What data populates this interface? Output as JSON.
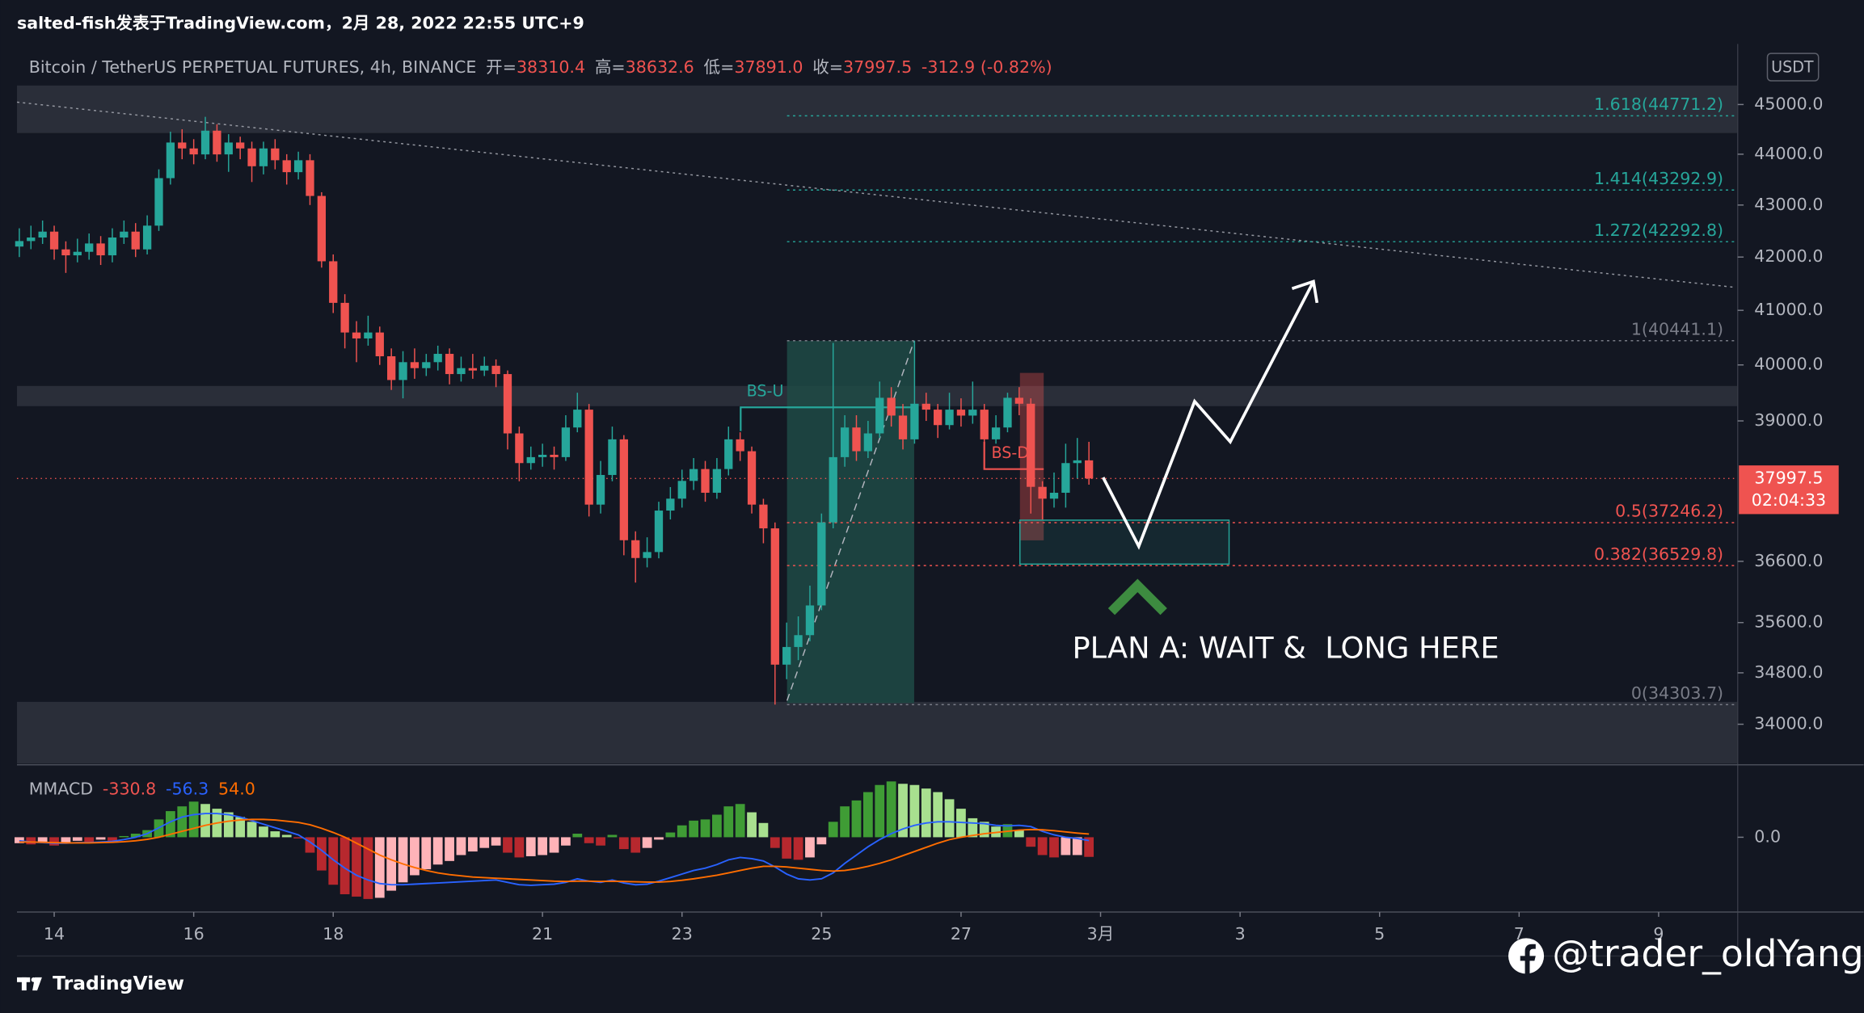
{
  "header": {
    "attribution": "salted-fish发表于TradingView.com，2月 28, 2022 22:55 UTC+9",
    "symbol": "Bitcoin / TetherUS PERPETUAL FUTURES, 4h, BINANCE",
    "ohlc": [
      {
        "label": "开=",
        "value": "38310.4"
      },
      {
        "label": "高=",
        "value": "38632.6"
      },
      {
        "label": "低=",
        "value": "37891.0"
      },
      {
        "label": "收=",
        "value": "37997.5"
      }
    ],
    "change": "-312.9 (-0.82%)",
    "currency": "USDT",
    "countdown": "02:04:33"
  },
  "annotations": {
    "bs_up": "BS-U",
    "bs_down": "BS-D",
    "plan": "PLAN A: WAIT &  LONG HERE"
  },
  "footer": {
    "brand": "TradingView",
    "watermark": "@trader_oldYang"
  },
  "chart_data": [
    {
      "type": "candlestick",
      "log_scale": true,
      "up_color": "#26a69a",
      "down_color": "#ef5350",
      "xlim": [
        -0.2,
        147.8
      ],
      "ylim": [
        33400,
        46250
      ],
      "xticks": [
        {
          "value": 3,
          "label": "14"
        },
        {
          "value": 15,
          "label": "16"
        },
        {
          "value": 27,
          "label": "18"
        },
        {
          "value": 45,
          "label": "21"
        },
        {
          "value": 57,
          "label": "23"
        },
        {
          "value": 69,
          "label": "25"
        },
        {
          "value": 81,
          "label": "27"
        },
        {
          "value": 93,
          "label": "3月"
        },
        {
          "value": 105,
          "label": "3"
        },
        {
          "value": 117,
          "label": "5"
        },
        {
          "value": 129,
          "label": "7"
        },
        {
          "value": 141,
          "label": "9"
        }
      ],
      "yticks": [
        {
          "value": 45000,
          "label": "45000.0"
        },
        {
          "value": 44000,
          "label": "44000.0"
        },
        {
          "value": 43000,
          "label": "43000.0"
        },
        {
          "value": 42000,
          "label": "42000.0"
        },
        {
          "value": 41000,
          "label": "41000.0"
        },
        {
          "value": 40000,
          "label": "40000.0"
        },
        {
          "value": 39000,
          "label": "39000.0"
        },
        {
          "value": 36600,
          "label": "36600.0"
        },
        {
          "value": 35600,
          "label": "35600.0"
        },
        {
          "value": 34800,
          "label": "34800.0"
        },
        {
          "value": 34000,
          "label": "34000.0"
        }
      ],
      "open": [
        42200,
        42305,
        42373,
        42486,
        42146,
        42033,
        42100,
        42259,
        42033,
        42373,
        42486,
        42146,
        42601,
        43526,
        44233,
        44115,
        43996,
        44471,
        43996,
        44233,
        44115,
        43761,
        44115,
        43880,
        43644,
        43880,
        43177,
        41920,
        41139,
        40591,
        40482,
        40591,
        40157,
        39728,
        40050,
        39942,
        40050,
        40201,
        39835,
        39942,
        39899,
        39985,
        39835,
        38780,
        38263,
        38366,
        38407,
        38366,
        38884,
        39199,
        37551,
        38058,
        38676,
        36951,
        36655,
        36754,
        37450,
        37652,
        37956,
        38160,
        37753,
        38160,
        38676,
        38469,
        37551,
        37150,
        34929,
        35209,
        35398,
        35877,
        37250,
        38366,
        38884,
        38469,
        38780,
        39410,
        39094,
        38676,
        39304,
        39199,
        38926,
        39199,
        39094,
        39199,
        38676,
        38884,
        39410,
        39304,
        37854,
        37652,
        37753,
        38263,
        38310.4
      ],
      "high": [
        42550,
        42600,
        42700,
        42600,
        42300,
        42350,
        42450,
        42400,
        42550,
        42700,
        42650,
        42800,
        43700,
        44450,
        44500,
        44300,
        44750,
        44600,
        44400,
        44350,
        44250,
        44250,
        44300,
        44000,
        44050,
        44000,
        43250,
        42050,
        41300,
        40800,
        40900,
        40700,
        40300,
        40250,
        40300,
        40200,
        40350,
        40300,
        40150,
        40200,
        40150,
        40100,
        39900,
        38900,
        38550,
        38600,
        38550,
        39100,
        39500,
        39300,
        38300,
        38900,
        38750,
        37100,
        37000,
        37600,
        37850,
        38150,
        38350,
        38300,
        38350,
        38900,
        38800,
        38550,
        37650,
        37250,
        35600,
        35700,
        36200,
        37400,
        40400,
        39100,
        39100,
        39000,
        39700,
        39600,
        39300,
        40441.1,
        39500,
        39300,
        39500,
        39400,
        39700,
        39300,
        39100,
        39500,
        39600,
        39400,
        37950,
        38100,
        38600,
        38700,
        38632.6
      ],
      "low": [
        42000,
        42150,
        42250,
        41950,
        41700,
        41900,
        41950,
        41850,
        41900,
        42250,
        42000,
        42050,
        42500,
        43400,
        43900,
        43800,
        43900,
        43850,
        43650,
        43900,
        43450,
        43600,
        43700,
        43400,
        43500,
        43000,
        41800,
        40950,
        40300,
        40050,
        40350,
        40000,
        39550,
        39400,
        39750,
        39800,
        39900,
        39650,
        39700,
        39750,
        39800,
        39600,
        38500,
        37950,
        38150,
        38200,
        38150,
        38300,
        38800,
        37350,
        37400,
        37950,
        36700,
        36250,
        36500,
        36650,
        37300,
        37500,
        37800,
        37600,
        37650,
        38050,
        38300,
        37400,
        36900,
        34303.7,
        34700,
        35000,
        35300,
        35800,
        37150,
        38200,
        38300,
        38350,
        38700,
        38900,
        38500,
        38600,
        39000,
        38700,
        38850,
        38900,
        38950,
        38550,
        38600,
        38800,
        39100,
        37400,
        37300,
        37500,
        37500,
        38000,
        37891.0
      ],
      "close": [
        42305,
        42373,
        42486,
        42146,
        42033,
        42100,
        42259,
        42033,
        42373,
        42486,
        42146,
        42601,
        43526,
        44233,
        44115,
        43996,
        44471,
        43996,
        44233,
        44115,
        43761,
        44115,
        43880,
        43644,
        43880,
        43177,
        41920,
        41139,
        40591,
        40482,
        40591,
        40157,
        39728,
        40050,
        39942,
        40050,
        40201,
        39835,
        39942,
        39899,
        39985,
        39835,
        38780,
        38263,
        38366,
        38407,
        38366,
        38884,
        39199,
        37551,
        38058,
        38676,
        36951,
        36655,
        36754,
        37450,
        37652,
        37956,
        38160,
        37753,
        38160,
        38676,
        38469,
        37551,
        37150,
        34929,
        35209,
        35398,
        35877,
        37250,
        38366,
        38884,
        38469,
        38780,
        39410,
        39094,
        38676,
        39304,
        39199,
        38926,
        39199,
        39094,
        39199,
        38676,
        38884,
        39410,
        39304,
        37854,
        37652,
        37753,
        38263,
        38310.4,
        37997.5
      ],
      "levels": [
        {
          "value": 44771.2,
          "label": "1.618(44771.2)",
          "color": "#26a69a"
        },
        {
          "value": 43292.9,
          "label": "1.414(43292.9)",
          "color": "#26a69a"
        },
        {
          "value": 42292.8,
          "label": "1.272(42292.8)",
          "color": "#26a69a"
        },
        {
          "value": 40441.1,
          "label": "1(40441.1)",
          "color": "#787b86"
        },
        {
          "value": 37246.2,
          "label": "0.5(37246.2)",
          "color": "#ef5350"
        },
        {
          "value": 36529.8,
          "label": "0.382(36529.8)",
          "color": "#ef5350"
        },
        {
          "value": 34303.7,
          "label": "0(34303.7)",
          "color": "#787b86"
        }
      ]
    },
    {
      "type": "macd",
      "title": "MMACD",
      "xlim": [
        -0.2,
        147.8
      ],
      "ylim": [
        -1260,
        1140
      ],
      "yticks": [
        {
          "value": 0,
          "label": "0.0"
        }
      ],
      "legend": [
        {
          "label": "-330.8",
          "color": "#ef5350"
        },
        {
          "label": "-56.3",
          "color": "#2962ff"
        },
        {
          "label": "54.0",
          "color": "#ff6d00"
        }
      ],
      "histogram": {
        "colors": {
          "up_strong": "#3f9c35",
          "up_weak": "#a8e08f",
          "down_strong": "#b7282e",
          "down_weak": "#ffb3b8"
        },
        "values": [
          -100,
          -120,
          -80,
          -140,
          -100,
          -60,
          -80,
          -40,
          -60,
          20,
          60,
          120,
          300,
          440,
          520,
          600,
          560,
          480,
          420,
          340,
          260,
          180,
          100,
          40,
          -20,
          -260,
          -560,
          -800,
          -960,
          -1000,
          -1040,
          -1020,
          -900,
          -760,
          -640,
          -540,
          -460,
          -400,
          -300,
          -240,
          -180,
          -140,
          -260,
          -340,
          -320,
          -300,
          -260,
          -140,
          60,
          -100,
          -140,
          40,
          -200,
          -260,
          -180,
          -40,
          80,
          200,
          280,
          300,
          380,
          520,
          560,
          420,
          240,
          -180,
          -360,
          -380,
          -340,
          -120,
          260,
          520,
          620,
          760,
          880,
          940,
          900,
          880,
          820,
          760,
          640,
          480,
          320,
          260,
          180,
          220,
          120,
          -160,
          -300,
          -340,
          -300,
          -300,
          -330.8
        ]
      },
      "lines": [
        {
          "color": "#2962ff",
          "values": [
            -60,
            -80,
            -90,
            -100,
            -100,
            -90,
            -90,
            -80,
            -70,
            -40,
            0,
            60,
            160,
            260,
            340,
            380,
            400,
            400,
            380,
            340,
            280,
            220,
            160,
            100,
            40,
            -80,
            -220,
            -380,
            -520,
            -640,
            -720,
            -780,
            -800,
            -800,
            -790,
            -780,
            -770,
            -760,
            -750,
            -740,
            -730,
            -720,
            -760,
            -800,
            -810,
            -800,
            -790,
            -760,
            -700,
            -740,
            -760,
            -720,
            -770,
            -800,
            -790,
            -740,
            -680,
            -620,
            -560,
            -520,
            -460,
            -380,
            -340,
            -360,
            -400,
            -500,
            -620,
            -700,
            -720,
            -700,
            -600,
            -440,
            -300,
            -160,
            -40,
            60,
            140,
            200,
            240,
            260,
            260,
            250,
            240,
            230,
            200,
            190,
            200,
            180,
            100,
            40,
            0,
            -20,
            -56.3
          ]
        },
        {
          "color": "#ff6d00",
          "values": [
            -80,
            -80,
            -85,
            -90,
            -95,
            -95,
            -95,
            -90,
            -85,
            -75,
            -60,
            -35,
            0,
            50,
            100,
            150,
            200,
            240,
            270,
            290,
            300,
            300,
            290,
            270,
            250,
            210,
            150,
            80,
            0,
            -100,
            -200,
            -300,
            -380,
            -450,
            -510,
            -560,
            -600,
            -630,
            -650,
            -670,
            -680,
            -690,
            -700,
            -710,
            -720,
            -730,
            -740,
            -745,
            -740,
            -740,
            -745,
            -740,
            -745,
            -750,
            -755,
            -755,
            -745,
            -725,
            -700,
            -670,
            -640,
            -600,
            -560,
            -520,
            -490,
            -490,
            -500,
            -520,
            -540,
            -560,
            -570,
            -560,
            -530,
            -490,
            -440,
            -380,
            -310,
            -240,
            -170,
            -100,
            -40,
            0,
            30,
            60,
            80,
            100,
            120,
            130,
            125,
            110,
            90,
            70,
            54.0
          ]
        }
      ]
    }
  ]
}
